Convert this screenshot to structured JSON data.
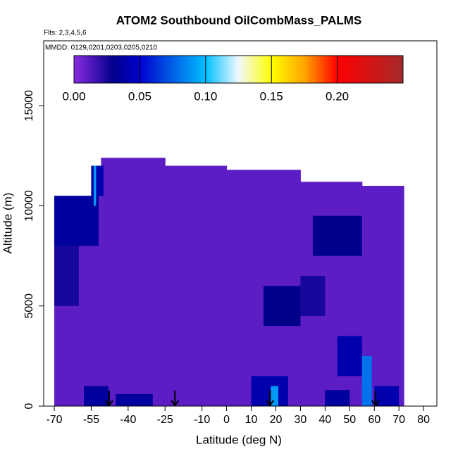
{
  "chart_data": {
    "type": "curtain",
    "title": "ATOM2 Southbound OilCombMass_PALMS",
    "subtitle": "Flts: 2,3,4,5,6",
    "annotation": "MMDD: 0129,0201,0203,0205,0210",
    "x_label": "Latitude (deg N)",
    "y_label": "Altitude (m)",
    "xlim": [
      -74.3,
      85.4
    ],
    "ylim": [
      0,
      18240
    ],
    "xticks": [
      -70,
      -55,
      -40,
      -25,
      -10,
      0,
      10,
      20,
      30,
      40,
      50,
      60,
      70,
      80
    ],
    "yticks": [
      0,
      5000,
      10000,
      15000
    ],
    "curtain": {
      "lat_edges": [
        -70,
        -55,
        -51,
        -25,
        0,
        30,
        55,
        72
      ],
      "tops": [
        10500,
        12000,
        12400,
        12000,
        11800,
        11200,
        11000
      ],
      "value": 0.01
    },
    "patches": [
      {
        "lat": [
          -70,
          -52
        ],
        "alt": [
          8000,
          10500
        ],
        "value": 0.035
      },
      {
        "lat": [
          -55,
          -50
        ],
        "alt": [
          10500,
          12000
        ],
        "value": 0.04
      },
      {
        "lat": [
          -54,
          -53
        ],
        "alt": [
          10000,
          12000
        ],
        "value": 0.09
      },
      {
        "lat": [
          -70,
          -60
        ],
        "alt": [
          5000,
          8000
        ],
        "value": 0.025
      },
      {
        "lat": [
          -58,
          -48
        ],
        "alt": [
          0,
          1000
        ],
        "value": 0.035
      },
      {
        "lat": [
          -45,
          -30
        ],
        "alt": [
          0,
          600
        ],
        "value": 0.035
      },
      {
        "lat": [
          10,
          25
        ],
        "alt": [
          0,
          1500
        ],
        "value": 0.04
      },
      {
        "lat": [
          18,
          21
        ],
        "alt": [
          0,
          1000
        ],
        "value": 0.09
      },
      {
        "lat": [
          15,
          30
        ],
        "alt": [
          4000,
          6000
        ],
        "value": 0.03
      },
      {
        "lat": [
          30,
          40
        ],
        "alt": [
          4500,
          6500
        ],
        "value": 0.025
      },
      {
        "lat": [
          35,
          55
        ],
        "alt": [
          7500,
          9500
        ],
        "value": 0.03
      },
      {
        "lat": [
          45,
          55
        ],
        "alt": [
          1500,
          3500
        ],
        "value": 0.04
      },
      {
        "lat": [
          40,
          50
        ],
        "alt": [
          0,
          800
        ],
        "value": 0.035
      },
      {
        "lat": [
          55,
          59
        ],
        "alt": [
          0,
          2500
        ],
        "value": 0.08
      },
      {
        "lat": [
          60,
          70
        ],
        "alt": [
          0,
          1000
        ],
        "value": 0.04
      }
    ],
    "arrows_lat": [
      -47.7,
      -21,
      17.6,
      60.5
    ],
    "colorbar": {
      "lim": [
        0,
        0.25
      ],
      "ticks": [
        {
          "value": 0,
          "label": "0.00"
        },
        {
          "value": 0.05,
          "label": "0.05"
        },
        {
          "value": 0.1,
          "label": "0.10"
        },
        {
          "value": 0.15,
          "label": "0.15"
        },
        {
          "value": 0.2,
          "label": "0.20"
        }
      ],
      "stops": [
        [
          0,
          "#8a2be2"
        ],
        [
          0.03,
          "#00008b"
        ],
        [
          0.05,
          "#0000cd"
        ],
        [
          0.1,
          "#00bfff"
        ],
        [
          0.125,
          "#f0f8ff"
        ],
        [
          0.15,
          "#ffff00"
        ],
        [
          0.175,
          "#ffa500"
        ],
        [
          0.2,
          "#ff0000"
        ],
        [
          0.25,
          "#a52a2a"
        ]
      ]
    }
  }
}
